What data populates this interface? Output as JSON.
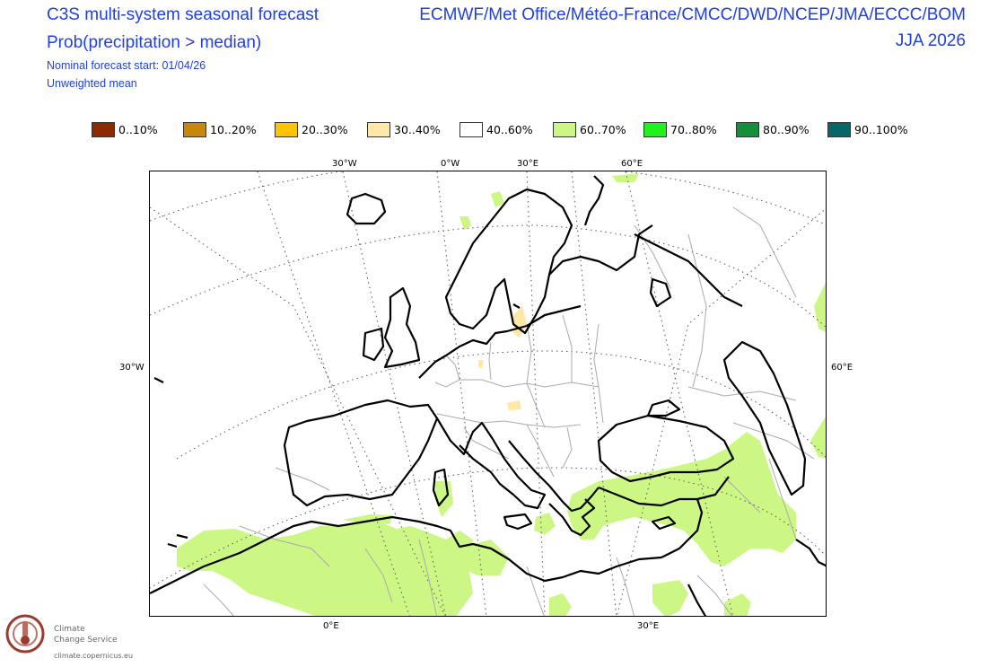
{
  "header": {
    "title_line1": "C3S multi-system seasonal forecast",
    "title_line2": "Prob(precipitation > median)",
    "subtitle_line1": "Nominal forecast start: 01/04/26",
    "subtitle_line2": "Unweighted mean",
    "centres": "ECMWF/Met Office/Météo-France/CMCC/DWD/NCEP/JMA/ECCC/BOM",
    "season": "JJA 2026"
  },
  "legend": [
    {
      "label": "0..10%",
      "color": "#8b2c00"
    },
    {
      "label": "10..20%",
      "color": "#c8860a"
    },
    {
      "label": "20..30%",
      "color": "#ffc400"
    },
    {
      "label": "30..40%",
      "color": "#ffe7a6"
    },
    {
      "label": "40..60%",
      "color": "#ffffff"
    },
    {
      "label": "60..70%",
      "color": "#ccf785"
    },
    {
      "label": "70..80%",
      "color": "#1ff21f"
    },
    {
      "label": "80..90%",
      "color": "#138f3c"
    },
    {
      "label": "90..100%",
      "color": "#076666"
    }
  ],
  "axis_labels": {
    "top": [
      "30°W",
      "0°W",
      "30°E",
      "60°E"
    ],
    "bottom": [
      "0°E",
      "30°E"
    ],
    "left": "30°W",
    "right": "60°E"
  },
  "logo": {
    "line1": "Climate",
    "line2": "Change Service",
    "url": "climate.copernicus.eu"
  },
  "colors": {
    "title": "#1f3fe0",
    "land_outline": "#000000",
    "border": "#aaaaaa",
    "graticule": "#555555",
    "positive_anomaly": "#ccf785",
    "negative_anomaly": "#ffe7a6"
  }
}
